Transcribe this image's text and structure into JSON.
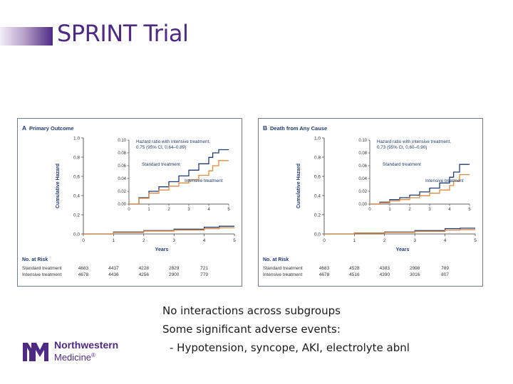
{
  "slide": {
    "title": "SPRINT Trial",
    "bullets": [
      "No interactions across subgroups",
      "Some significant adverse events:",
      "- Hypotension, syncope, AKI, electrolyte abnl"
    ],
    "logo": {
      "line1": "Northwestern",
      "line2": "Medicine",
      "mark": "®"
    },
    "colors": {
      "accent": "#4e2a84",
      "standard": "#1f3b73",
      "intensive": "#e08a3c"
    }
  },
  "chart_data": [
    {
      "type": "line",
      "panel_letter": "A",
      "title": "Primary Outcome",
      "xlabel": "Years",
      "ylabel": "Cumulative Hazard",
      "xlim": [
        0,
        5
      ],
      "ylim": [
        0,
        1.0
      ],
      "x_ticks": [
        "0",
        "1",
        "2",
        "3",
        "4",
        "5"
      ],
      "y_ticks": [
        "0.0",
        "0.2",
        "0.4",
        "0.6",
        "0.8",
        "1.0"
      ],
      "series": [
        {
          "name": "Standard treatment",
          "x": [
            0,
            1,
            2,
            3,
            4,
            4.5,
            5
          ],
          "y": [
            0,
            0.02,
            0.035,
            0.05,
            0.07,
            0.08,
            0.08
          ]
        },
        {
          "name": "Intensive treatment",
          "x": [
            0,
            1,
            2,
            3,
            4,
            4.5,
            5
          ],
          "y": [
            0,
            0.015,
            0.03,
            0.04,
            0.055,
            0.065,
            0.065
          ]
        }
      ],
      "inset": {
        "annotation": [
          "Hazard ratio with intensive treatment,",
          "0.75 (95% CI, 0.64–0.89)"
        ],
        "xlim": [
          0,
          5
        ],
        "ylim": [
          0,
          0.1
        ],
        "x_ticks": [
          "0",
          "1",
          "2",
          "3",
          "4",
          "5"
        ],
        "y_ticks": [
          "0.00",
          "0.02",
          "0.04",
          "0.06",
          "0.08",
          "0.10"
        ],
        "series": [
          {
            "name": "Standard treatment",
            "x": [
              0,
              0.5,
              1,
              1.5,
              2,
              2.5,
              3,
              3.5,
              4,
              4.2,
              4.5,
              5
            ],
            "y": [
              0,
              0.01,
              0.02,
              0.027,
              0.035,
              0.044,
              0.053,
              0.063,
              0.073,
              0.08,
              0.085,
              0.085
            ]
          },
          {
            "name": "Intensive treatment",
            "x": [
              0,
              0.5,
              1,
              1.5,
              2,
              2.5,
              3,
              3.5,
              4,
              4.2,
              4.5,
              5
            ],
            "y": [
              0,
              0.009,
              0.017,
              0.022,
              0.028,
              0.033,
              0.038,
              0.045,
              0.052,
              0.06,
              0.068,
              0.068
            ]
          }
        ],
        "series_labels": [
          "Standard treatment",
          "Intensive treatment"
        ]
      },
      "risk_table": {
        "heading": "No. at Risk",
        "rows": [
          {
            "label": "Standard treatment",
            "values": [
              "4683",
              "4437",
              "4228",
              "2829",
              "721"
            ]
          },
          {
            "label": "Intensive treatment",
            "values": [
              "4678",
              "4436",
              "4256",
              "2900",
              "779"
            ]
          }
        ]
      }
    },
    {
      "type": "line",
      "panel_letter": "B",
      "title": "Death from Any Cause",
      "xlabel": "Years",
      "ylabel": "Cumulative Hazard",
      "xlim": [
        0,
        5
      ],
      "ylim": [
        0,
        1.0
      ],
      "x_ticks": [
        "0",
        "1",
        "2",
        "3",
        "4",
        "5"
      ],
      "y_ticks": [
        "0.0",
        "0.2",
        "0.4",
        "0.6",
        "0.8",
        "1.0"
      ],
      "series": [
        {
          "name": "Standard treatment",
          "x": [
            0,
            1,
            2,
            3,
            4,
            4.5,
            5
          ],
          "y": [
            0,
            0.01,
            0.02,
            0.035,
            0.055,
            0.06,
            0.06
          ]
        },
        {
          "name": "Intensive treatment",
          "x": [
            0,
            1,
            2,
            3,
            4,
            4.5,
            5
          ],
          "y": [
            0,
            0.008,
            0.016,
            0.026,
            0.04,
            0.045,
            0.045
          ]
        }
      ],
      "inset": {
        "annotation": [
          "Hazard ratio with intensive treatment,",
          "0.73 (95% CI, 0.60–0.90)"
        ],
        "xlim": [
          0,
          5
        ],
        "ylim": [
          0,
          0.1
        ],
        "x_ticks": [
          "0",
          "1",
          "2",
          "3",
          "4",
          "5"
        ],
        "y_ticks": [
          "0.00",
          "0.02",
          "0.04",
          "0.06",
          "0.08",
          "0.10"
        ],
        "series": [
          {
            "name": "Standard treatment",
            "x": [
              0,
              0.5,
              1,
              1.5,
              2,
              2.5,
              3,
              3.5,
              4,
              4.2,
              4.5,
              5
            ],
            "y": [
              0,
              0.003,
              0.007,
              0.01,
              0.014,
              0.019,
              0.025,
              0.033,
              0.042,
              0.05,
              0.062,
              0.062
            ]
          },
          {
            "name": "Intensive treatment",
            "x": [
              0,
              0.5,
              1,
              1.5,
              2,
              2.5,
              3,
              3.5,
              4,
              4.2,
              4.5,
              5
            ],
            "y": [
              0,
              0.002,
              0.005,
              0.007,
              0.01,
              0.013,
              0.017,
              0.022,
              0.029,
              0.036,
              0.046,
              0.046
            ]
          }
        ],
        "series_labels": [
          "Standard treatment",
          "Intensive treatment"
        ]
      },
      "risk_table": {
        "heading": "No. at Risk",
        "rows": [
          {
            "label": "Standard treatment",
            "values": [
              "4683",
              "4528",
              "4383",
              "2998",
              "789"
            ]
          },
          {
            "label": "Intensive treatment",
            "values": [
              "4678",
              "4516",
              "4390",
              "3016",
              "807"
            ]
          }
        ]
      }
    }
  ]
}
